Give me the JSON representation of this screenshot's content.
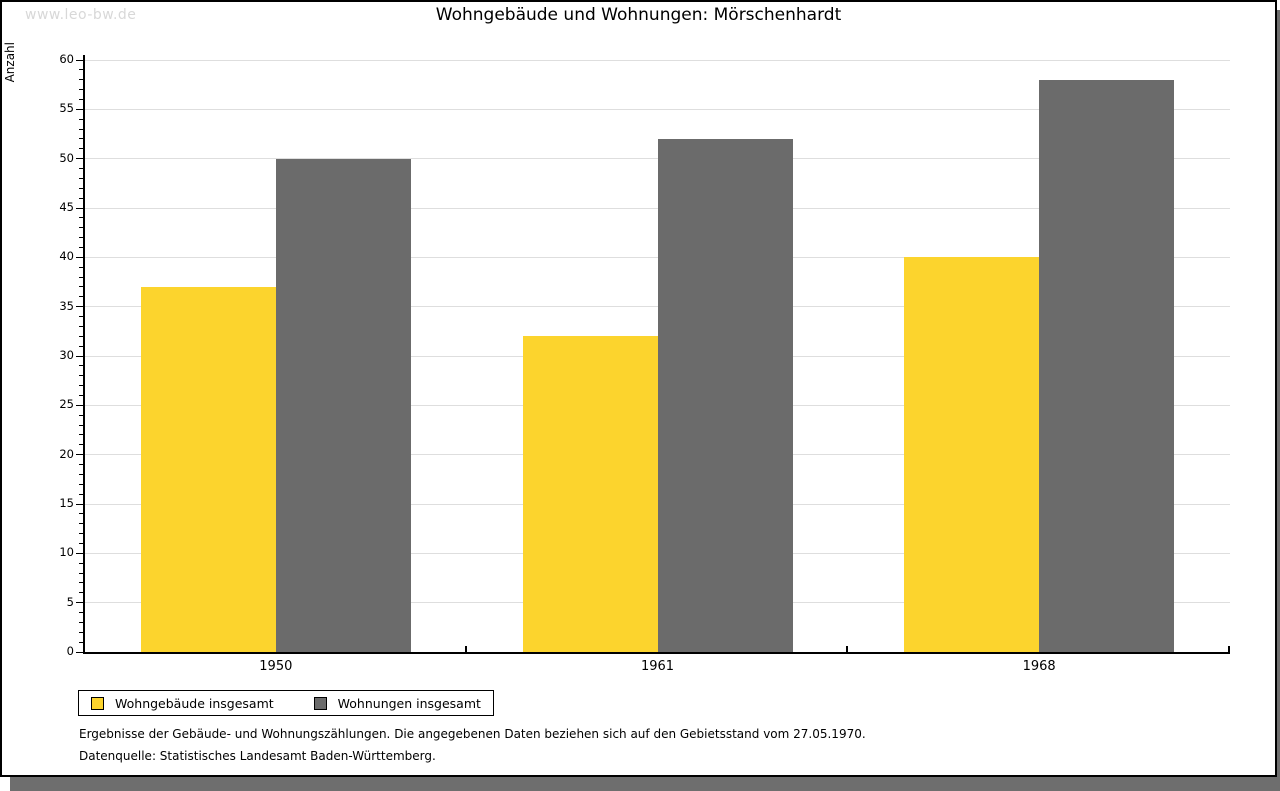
{
  "page": {
    "watermark": "www.leo-bw.de"
  },
  "chart_data": {
    "type": "bar",
    "title": "Wohngebäude und Wohnungen: Mörschenhardt",
    "ylabel": "Anzahl",
    "xlabel": "",
    "categories": [
      "1950",
      "1961",
      "1968"
    ],
    "series": [
      {
        "name": "Wohngebäude insgesamt",
        "color": "#fcd42d",
        "values": [
          37,
          32,
          40
        ]
      },
      {
        "name": "Wohnungen insgesamt",
        "color": "#6b6b6b",
        "values": [
          50,
          52,
          58
        ]
      }
    ],
    "ylim": [
      0,
      60
    ],
    "yticks": [
      0,
      5,
      10,
      15,
      20,
      25,
      30,
      35,
      40,
      45,
      50,
      55,
      60
    ],
    "minor_tick_step": 1,
    "grid": true,
    "legend_position": "bottom-left"
  },
  "footnotes": {
    "line1": "Ergebnisse der Gebäude- und Wohnungszählungen. Die angegebenen Daten beziehen sich auf den Gebietsstand vom 27.05.1970.",
    "line2": "Datenquelle: Statistisches Landesamt Baden-Württemberg."
  },
  "colors": {
    "grid": "#dedede",
    "axis": "#000000",
    "shadow": "#6e6e6e",
    "watermark": "#d8d8d8",
    "background": "#ffffff"
  }
}
